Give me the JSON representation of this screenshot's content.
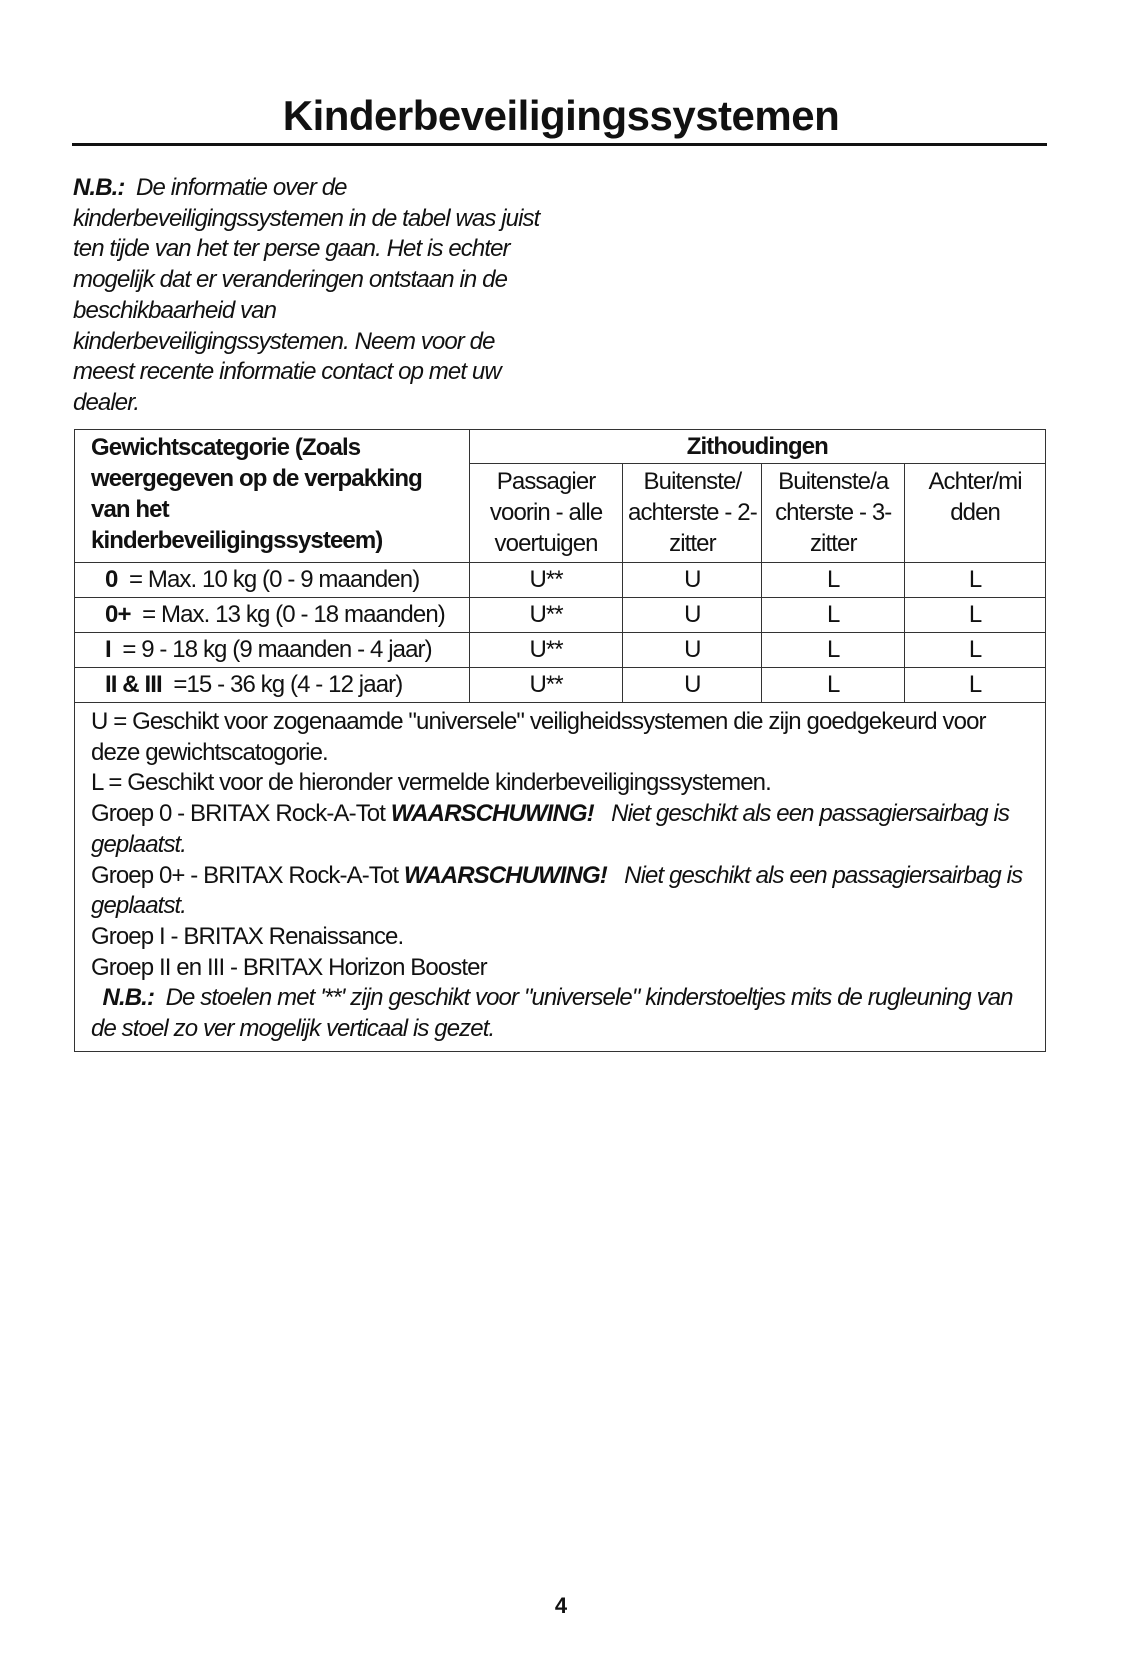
{
  "title": "Kinderbeveiligingssystemen",
  "note": {
    "label": "N.B.:",
    "text": "De informatie over de kinderbeveiligingssystemen in de tabel was juist ten tijde van het ter perse gaan. Het is echter mogelijk dat er veranderingen ontstaan in de beschikbaarheid van kinderbeveiligingssystemen. Neem voor de meest recente informatie contact op met uw dealer."
  },
  "table": {
    "header_weight": "Gewichtscategorie (Zoals weergegeven op de verpakking van het kinderbeveiligingssysteem)",
    "header_positions": "Zithoudingen",
    "columns": [
      "Passagier voorin - alle voertuigen",
      "Buitenste/ achterste - 2-zitter",
      "Buitenste/a chterste - 3-zitter",
      "Achter/mi dden"
    ],
    "rows": [
      {
        "group": "0",
        "desc": "= Max. 10 kg (0 - 9 maanden)",
        "values": [
          "U**",
          "U",
          "L",
          "L"
        ]
      },
      {
        "group": "0+",
        "desc": "= Max. 13 kg (0 - 18 maanden)",
        "values": [
          "U**",
          "U",
          "L",
          "L"
        ]
      },
      {
        "group": "I",
        "desc": "= 9 - 18 kg (9 maanden - 4 jaar)",
        "values": [
          "U**",
          "U",
          "L",
          "L"
        ]
      },
      {
        "group": "II & III",
        "desc": "=15 - 36 kg (4 - 12 jaar)",
        "values": [
          "U**",
          "U",
          "L",
          "L"
        ]
      }
    ],
    "notes": {
      "u": "U = Geschikt voor zogenaamde \"universele\" veiligheidssystemen die zijn goedgekeurd voor deze gewichtscatogorie.",
      "l": "L = Geschikt voor de hieronder vermelde kinderbeveiligingssystemen.",
      "g0": "Groep 0 - BRITAX Rock-A-Tot",
      "g0_warn": "WAARSCHUWING!",
      "g0_text": "Niet geschikt als een passagiersairbag is geplaatst.",
      "g0p": "Groep 0+ - BRITAX Rock-A-Tot",
      "g0p_warn": "WAARSCHUWING!",
      "g0p_text": "Niet geschikt als een passagiersairbag is geplaatst.",
      "g1": "Groep I - BRITAX Renaissance.",
      "g23": "Groep II en III - BRITAX Horizon Booster",
      "nb_label": "N.B.:",
      "nb_text": "De stoelen met '**' zijn geschikt voor \"universele\" kinderstoeltjes mits de rugleuning van de stoel zo ver mogelijk verticaal is gezet."
    }
  },
  "page_number": "4"
}
